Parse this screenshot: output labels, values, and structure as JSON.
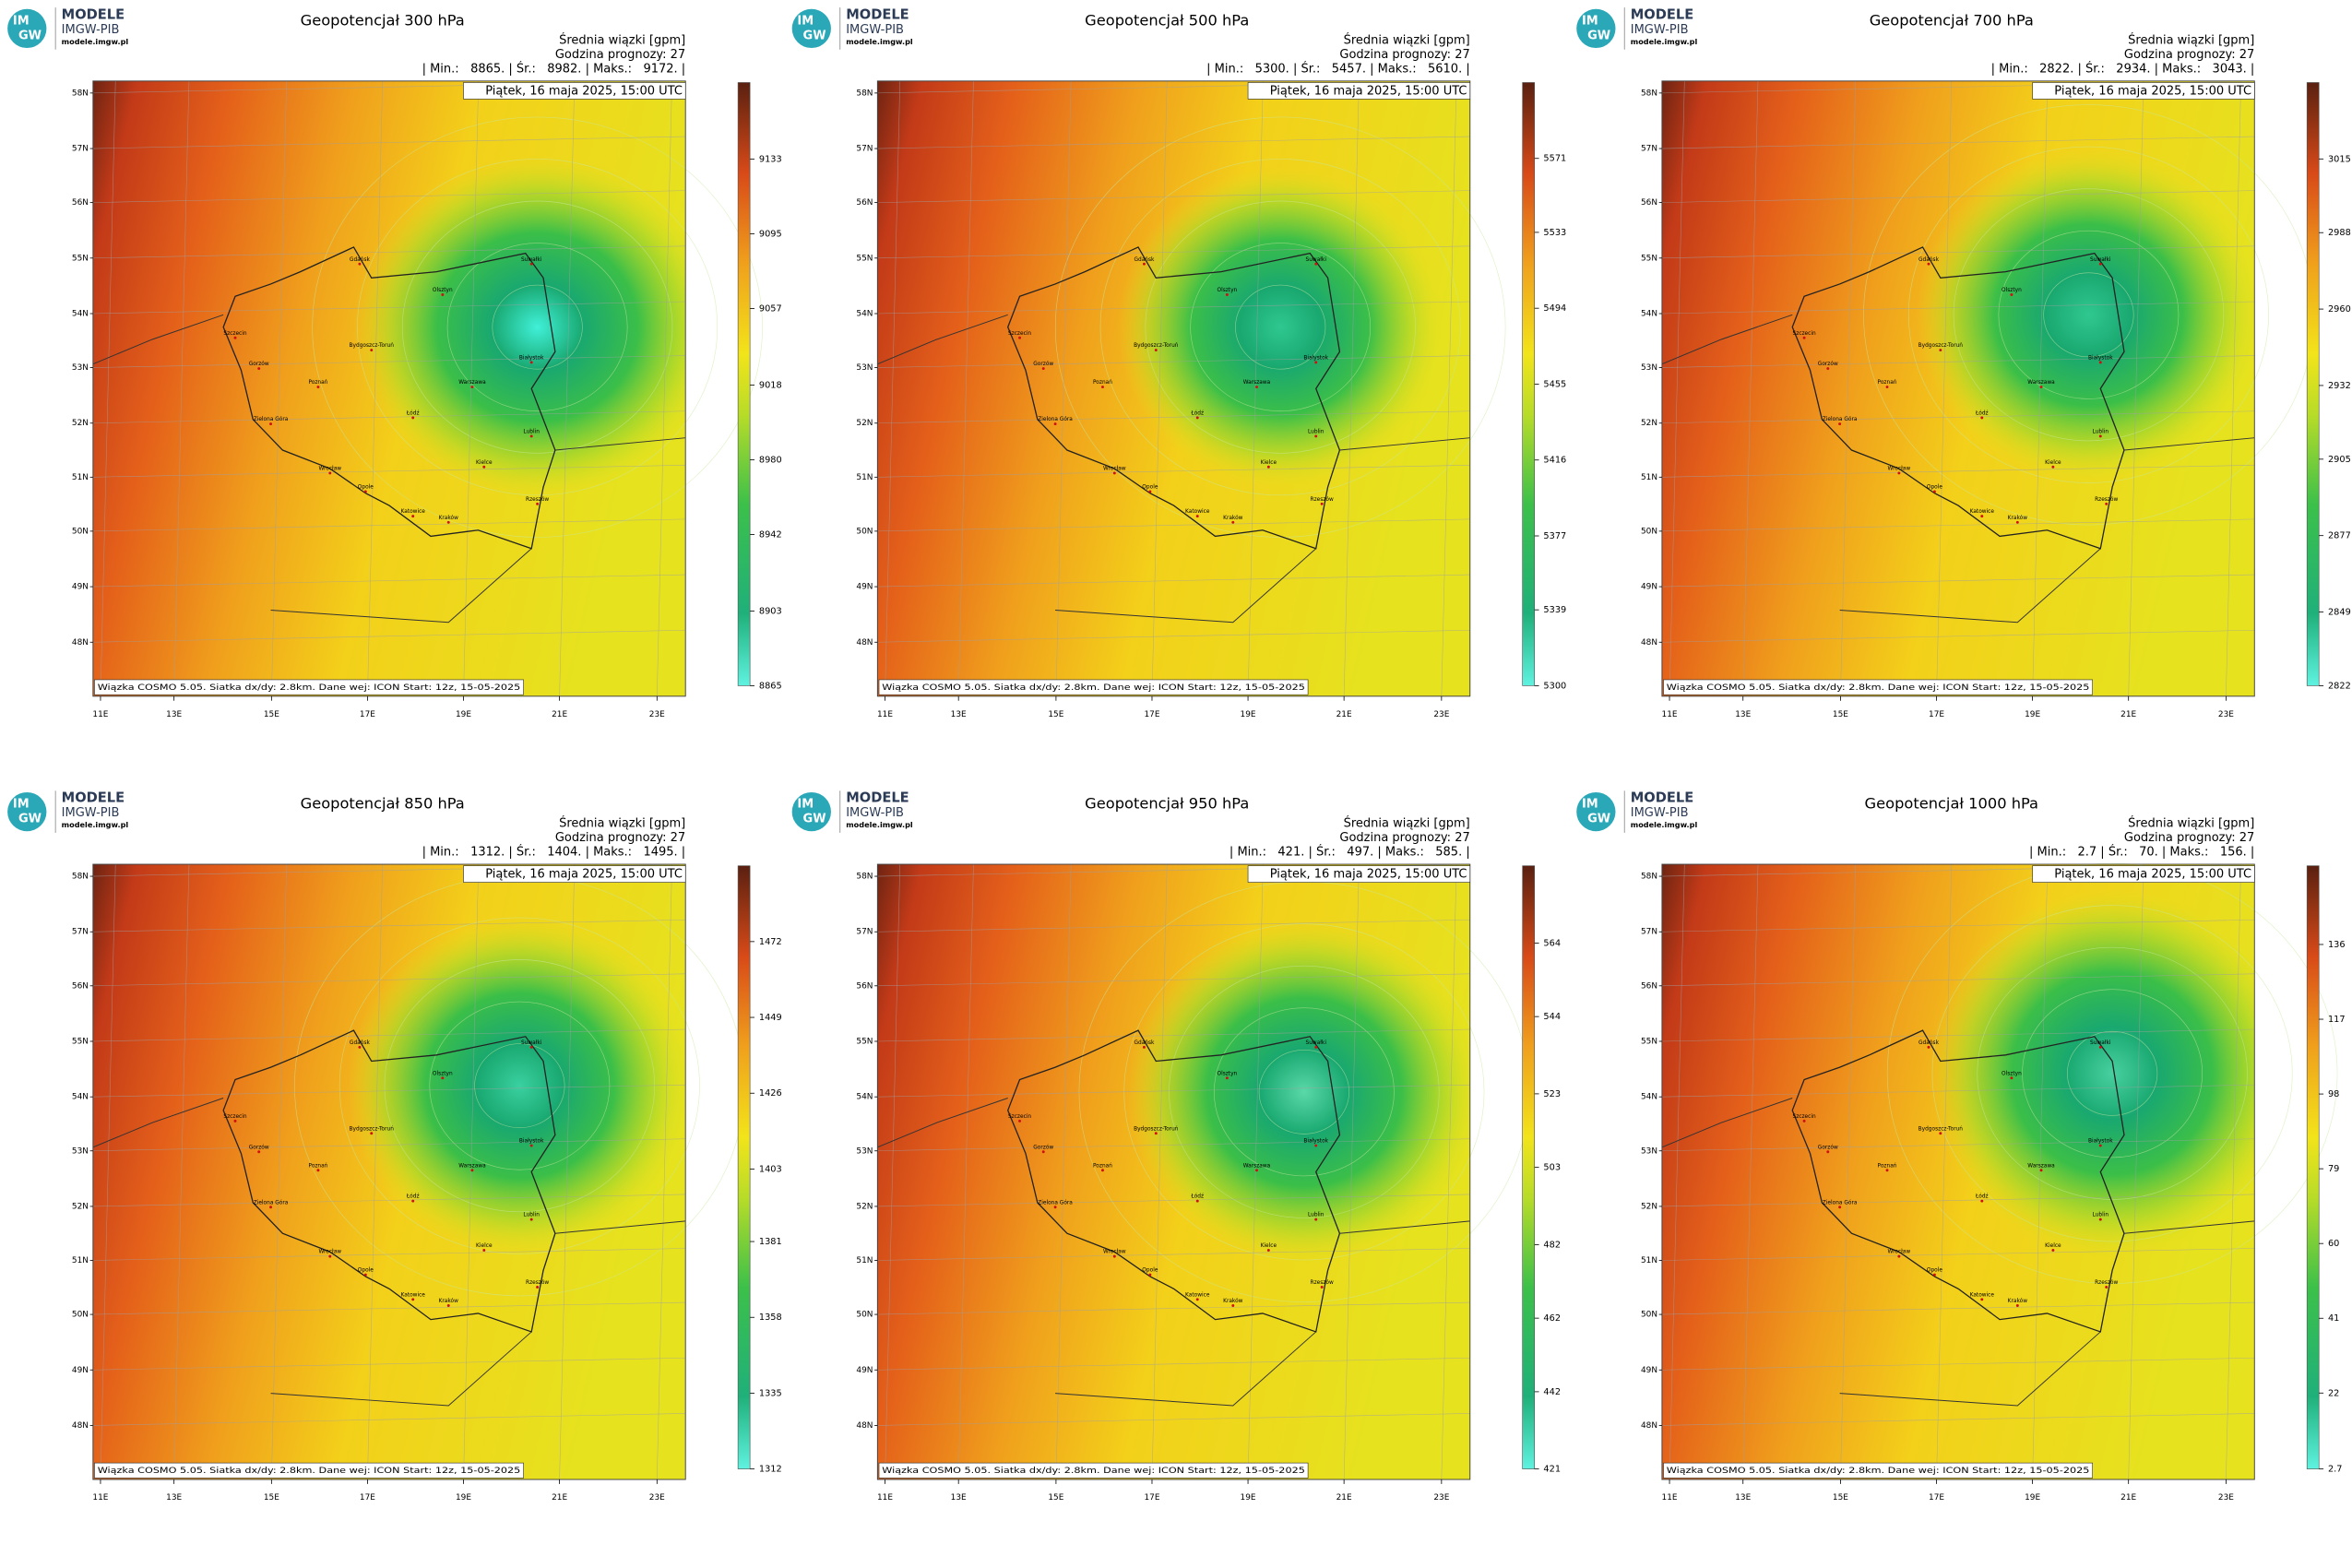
{
  "logo": {
    "letters": [
      "IM",
      "GW"
    ],
    "name": "MODELE",
    "org": "IMGW-PIB",
    "url": "modele.imgw.pl"
  },
  "ensemble_label": "Średnia wiązki [gpm]",
  "forecast_hour": "Godzina prognozy: 27",
  "valid_time": "Piątek, 16 maja 2025, 15:00 UTC",
  "footer": "Wiązka COSMO 5.05. Siatka dx/dy: 2.8km. Dane wej: ICON Start: 12z, 15-05-2025",
  "lat_labels": [
    "58N",
    "57N",
    "56N",
    "55N",
    "54N",
    "53N",
    "52N",
    "51N",
    "50N",
    "49N",
    "48N"
  ],
  "lon_labels": [
    "11E",
    "13E",
    "15E",
    "17E",
    "19E",
    "21E",
    "23E"
  ],
  "cities": [
    "Gdańsk",
    "Olsztyn",
    "Suwałki",
    "Szczecin",
    "Bydgoszcz-Toruń",
    "Białystok",
    "Gorzów",
    "Poznań",
    "Warszawa",
    "Zielona Góra",
    "Łódź",
    "Lublin",
    "Wrocław",
    "Opole",
    "Kielce",
    "Katowice",
    "Kraków",
    "Rzeszów"
  ],
  "panels": [
    {
      "title": "Geopotencjał 300 hPa",
      "stats": "| Min.:   8865. | Śr.:   8982. | Maks.:   9172. |",
      "colorbar": {
        "range": [
          8865,
          9172
        ],
        "ticks": [
          9133,
          9095,
          9057,
          9018,
          8980,
          8942,
          8903,
          8865
        ]
      }
    },
    {
      "title": "Geopotencjał 500 hPa",
      "stats": "| Min.:   5300. | Śr.:   5457. | Maks.:   5610. |",
      "colorbar": {
        "range": [
          5300,
          5610
        ],
        "ticks": [
          5571,
          5533,
          5494,
          5455,
          5416,
          5377,
          5339,
          5300
        ]
      }
    },
    {
      "title": "Geopotencjał 700 hPa",
      "stats": "| Min.:   2822. | Śr.:   2934. | Maks.:   3043. |",
      "colorbar": {
        "range": [
          2822,
          3043
        ],
        "ticks": [
          3015,
          2988,
          2960,
          2932,
          2905,
          2877,
          2849,
          2822
        ]
      }
    },
    {
      "title": "Geopotencjał 850 hPa",
      "stats": "| Min.:   1312. | Śr.:   1404. | Maks.:   1495. |",
      "colorbar": {
        "range": [
          1312,
          1495
        ],
        "ticks": [
          1472,
          1449,
          1426,
          1403,
          1381,
          1358,
          1335,
          1312
        ]
      }
    },
    {
      "title": "Geopotencjał 950 hPa",
      "stats": "| Min.:   421. | Śr.:   497. | Maks.:   585. |",
      "colorbar": {
        "range": [
          421,
          585
        ],
        "ticks": [
          564,
          544,
          523,
          503,
          482,
          462,
          442,
          421
        ]
      }
    },
    {
      "title": "Geopotencjał 1000 hPa",
      "stats": "| Min.:   2.7 | Śr.:   70. | Maks.:   156. |",
      "colorbar": {
        "range": [
          2.7,
          156
        ],
        "ticks": [
          136,
          117,
          98,
          79,
          60,
          41,
          22,
          2.7
        ]
      }
    }
  ]
}
